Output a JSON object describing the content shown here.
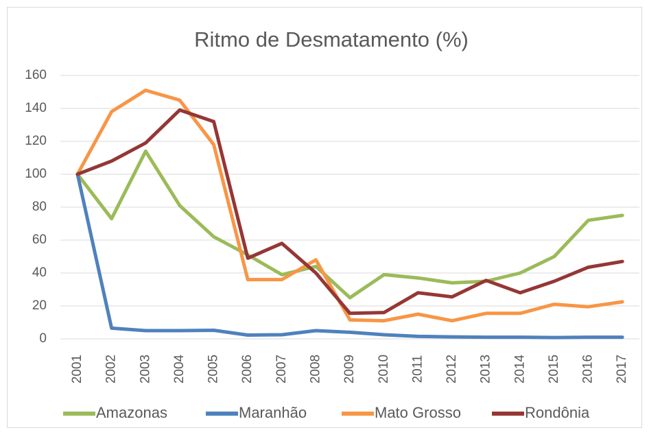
{
  "chart_data": {
    "type": "line",
    "title": "Ritmo de Desmatamento (%)",
    "categories": [
      "2001",
      "2002",
      "2003",
      "2004",
      "2005",
      "2006",
      "2007",
      "2008",
      "2009",
      "2010",
      "2011",
      "2012",
      "2013",
      "2014",
      "2015",
      "2016",
      "2017"
    ],
    "series": [
      {
        "name": "Amazonas",
        "color": "#9bbb59",
        "values": [
          100,
          73,
          114,
          81,
          62,
          51,
          39,
          44,
          25,
          39,
          37,
          34,
          35,
          40,
          50,
          72,
          75
        ]
      },
      {
        "name": "Maranhão",
        "color": "#4f81bd",
        "values": [
          100,
          6.5,
          5,
          5,
          5.2,
          2.3,
          2.5,
          5,
          4,
          2.5,
          1.5,
          1.2,
          1,
          1,
          0.8,
          1,
          1
        ]
      },
      {
        "name": "Mato Grosso",
        "color": "#f79646",
        "values": [
          100,
          138,
          151,
          145,
          118,
          36,
          36,
          48,
          11.5,
          11,
          15,
          11,
          15.5,
          15.5,
          21,
          19.5,
          22.5
        ]
      },
      {
        "name": "Rondônia",
        "color": "#953735",
        "values": [
          100,
          108,
          119,
          139,
          132,
          49,
          58,
          40,
          15.5,
          16,
          28,
          25.5,
          35.5,
          28,
          35,
          43.5,
          47
        ]
      }
    ],
    "ylim": [
      0,
      160
    ],
    "yticks": [
      0,
      20,
      40,
      60,
      80,
      100,
      120,
      140,
      160
    ],
    "grid": true,
    "legend": "bottom"
  }
}
